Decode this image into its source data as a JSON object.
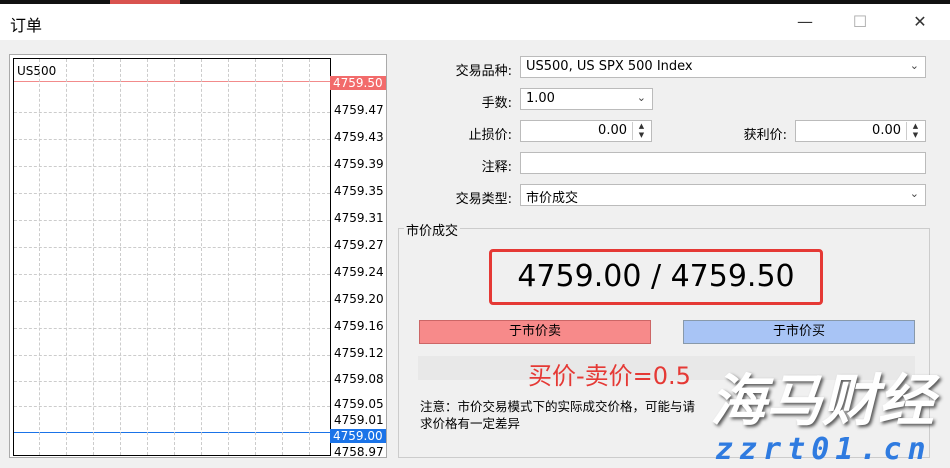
{
  "window": {
    "title": "订单",
    "minimize": "—",
    "maximize": "☐",
    "close": "✕"
  },
  "chart": {
    "symbol": "US500",
    "ask": "4759.50",
    "bid": "4759.00",
    "ask_color": "#f26b6b",
    "bid_color": "#1a73e8",
    "price_labels": [
      "4759.47",
      "4759.43",
      "4759.39",
      "4759.35",
      "4759.31",
      "4759.27",
      "4759.24",
      "4759.20",
      "4759.16",
      "4759.12",
      "4759.08",
      "4759.05",
      "4759.01",
      "4758.97"
    ]
  },
  "form": {
    "symbol_label": "交易品种:",
    "symbol_value": "US500, US SPX 500 Index",
    "volume_label": "手数:",
    "volume_value": "1.00",
    "sl_label": "止损价:",
    "sl_value": "0.00",
    "tp_label": "获利价:",
    "tp_value": "0.00",
    "comment_label": "注释:",
    "comment_value": "",
    "type_label": "交易类型:",
    "type_value": "市价成交"
  },
  "market": {
    "group_label": "市价成交",
    "quote": "4759.00 / 4759.50",
    "sell_label": "于市价卖",
    "buy_label": "于市价买",
    "sell_color": "#f78a8a",
    "buy_color": "#a8c4f5",
    "note": "注意：市价交易模式下的实际成交价格，可能与请求价格有一定差异"
  },
  "annotation": "买价-卖价=0.5",
  "watermark": {
    "text": "海马财经",
    "url": "zzrt01.cn"
  }
}
